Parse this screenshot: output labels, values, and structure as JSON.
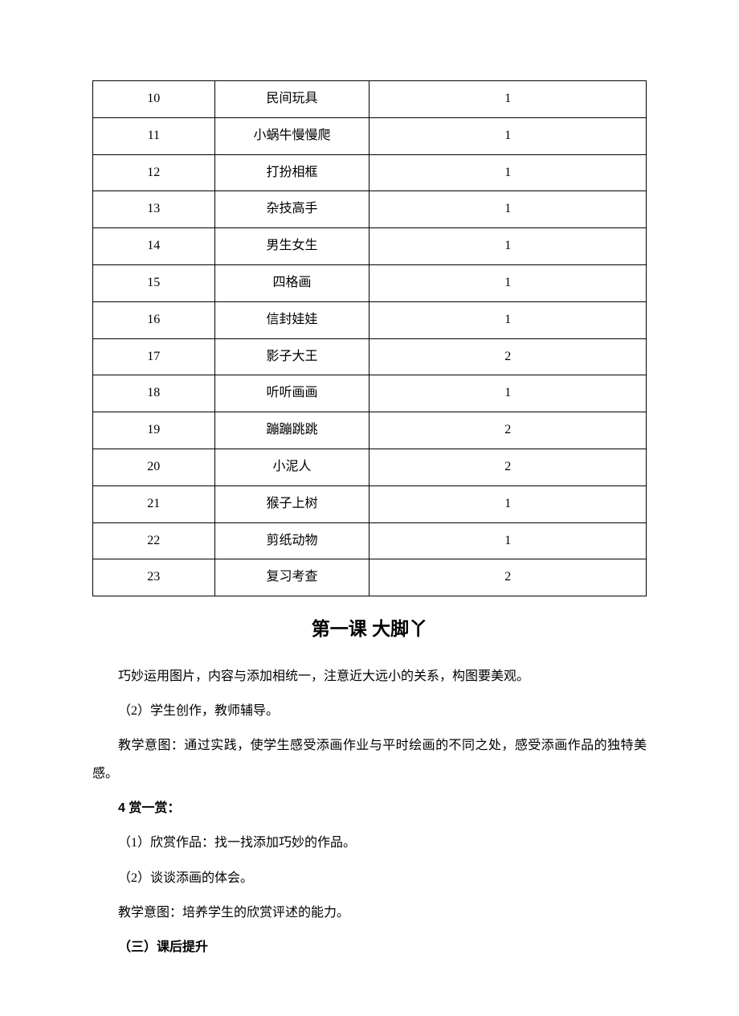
{
  "table": {
    "rows": [
      {
        "num": "10",
        "title": "民间玩具",
        "hours": "1"
      },
      {
        "num": "11",
        "title": "小蜗牛慢慢爬",
        "hours": "1"
      },
      {
        "num": "12",
        "title": "打扮相框",
        "hours": "1"
      },
      {
        "num": "13",
        "title": "杂技高手",
        "hours": "1"
      },
      {
        "num": "14",
        "title": "男生女生",
        "hours": "1"
      },
      {
        "num": "15",
        "title": "四格画",
        "hours": "1"
      },
      {
        "num": "16",
        "title": "信封娃娃",
        "hours": "1"
      },
      {
        "num": "17",
        "title": "影子大王",
        "hours": "2"
      },
      {
        "num": "18",
        "title": "听听画画",
        "hours": "1"
      },
      {
        "num": "19",
        "title": "蹦蹦跳跳",
        "hours": "2"
      },
      {
        "num": "20",
        "title": "小泥人",
        "hours": "2"
      },
      {
        "num": "21",
        "title": "猴子上树",
        "hours": "1"
      },
      {
        "num": "22",
        "title": "剪纸动物",
        "hours": "1"
      },
      {
        "num": "23",
        "title": "复习考查",
        "hours": "2"
      }
    ]
  },
  "lesson_title": "第一课 大脚丫",
  "paragraphs": {
    "p1": "巧妙运用图片，内容与添加相统一，注意近大远小的关系，构图要美观。",
    "p2": "（2）学生创作，教师辅导。",
    "p3": "教学意图：通过实践，使学生感受添画作业与平时绘画的不同之处，感受添画作品的独特美感。",
    "h1": "4 赏一赏：",
    "p4": "（1）欣赏作品：找一找添加巧妙的作品。",
    "p5": "（2）谈谈添画的体会。",
    "p6": "教学意图：培养学生的欣赏评述的能力。",
    "h2": "（三）课后提升"
  }
}
